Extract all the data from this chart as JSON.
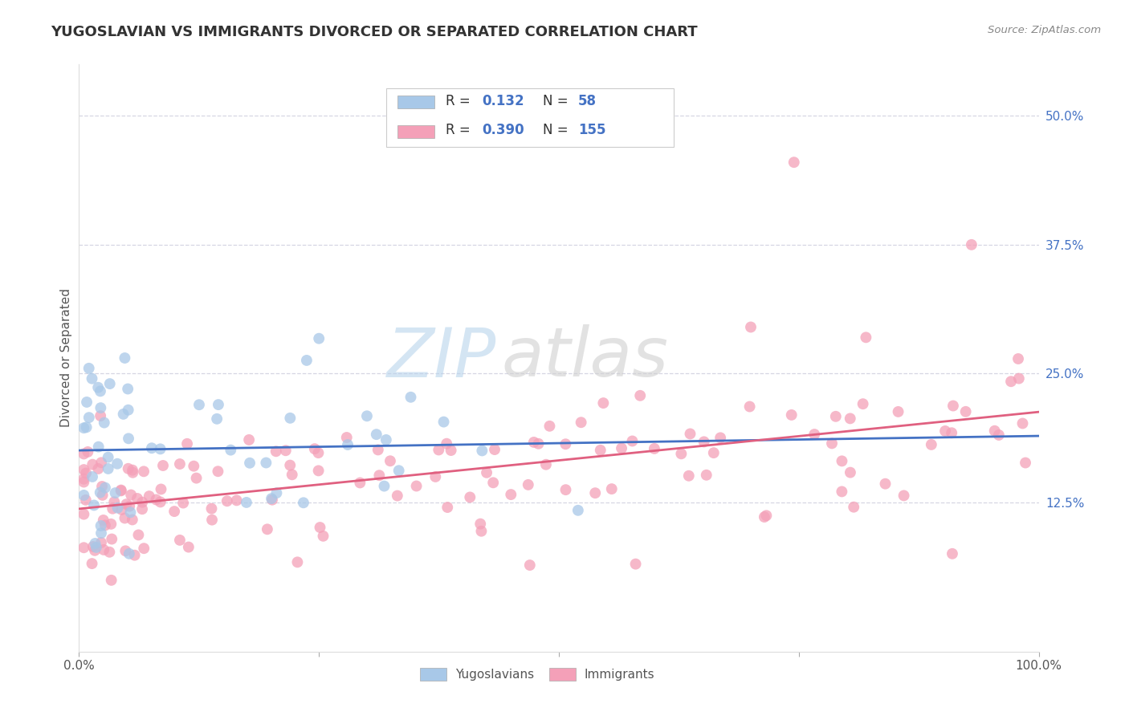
{
  "title": "YUGOSLAVIAN VS IMMIGRANTS DIVORCED OR SEPARATED CORRELATION CHART",
  "source_text": "Source: ZipAtlas.com",
  "ylabel": "Divorced or Separated",
  "legend_labels": [
    "Yugoslavians",
    "Immigrants"
  ],
  "r_values": [
    0.132,
    0.39
  ],
  "n_values": [
    58,
    155
  ],
  "blue_color": "#A8C8E8",
  "pink_color": "#F4A0B8",
  "blue_line_color": "#4472C4",
  "pink_line_color": "#E06080",
  "watermark_zip": "ZIP",
  "watermark_atlas": "atlas",
  "yticks": [
    0.125,
    0.25,
    0.375,
    0.5
  ],
  "ytick_labels": [
    "12.5%",
    "25.0%",
    "37.5%",
    "50.0%"
  ],
  "xlim": [
    0.0,
    1.0
  ],
  "ylim": [
    -0.02,
    0.55
  ],
  "grid_color": "#CCCCDD",
  "title_fontsize": 13,
  "axis_tick_color": "#555555"
}
